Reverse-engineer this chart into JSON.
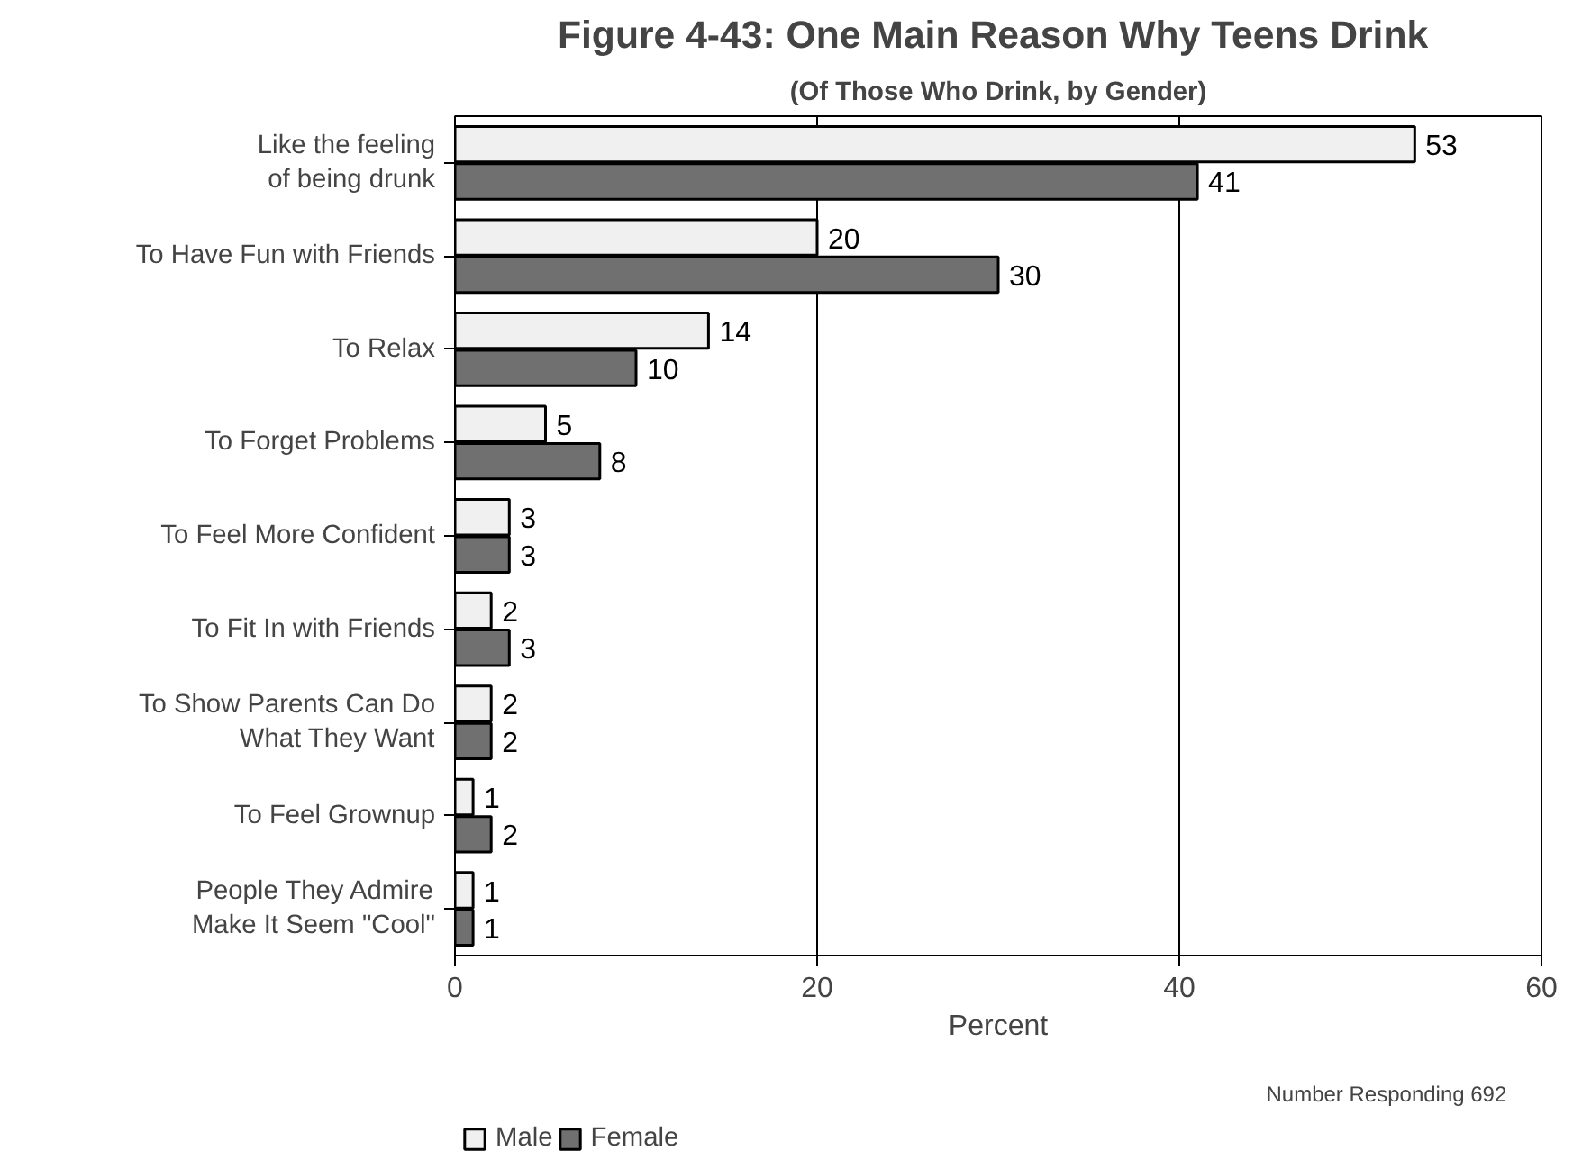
{
  "chart_data": {
    "type": "bar",
    "orientation": "horizontal",
    "title": "Figure 4-43:  One Main Reason Why Teens Drink",
    "subtitle": "(Of Those Who Drink, by Gender)",
    "xlabel": "Percent",
    "categories": [
      "Like the feeling\nof being drunk",
      "To Have Fun with Friends",
      "To Relax",
      "To Forget Problems",
      "To Feel More Confident",
      "To Fit In with Friends",
      "To Show Parents Can Do\nWhat They Want",
      "To Feel Grownup",
      "People They Admire\nMake It Seem \"Cool\""
    ],
    "series": [
      {
        "name": "Male",
        "color": "#f0f0f0",
        "values": [
          53,
          20,
          14,
          5,
          3,
          2,
          2,
          1,
          1
        ]
      },
      {
        "name": "Female",
        "color": "#707070",
        "values": [
          41,
          30,
          10,
          8,
          3,
          3,
          2,
          2,
          1
        ]
      }
    ],
    "xlim": [
      0,
      60
    ],
    "xticks": [
      0,
      20,
      40,
      60
    ],
    "grid": "x",
    "data_labels": true,
    "legend": "bottom left",
    "annotations": [
      "Number Responding 692"
    ]
  }
}
